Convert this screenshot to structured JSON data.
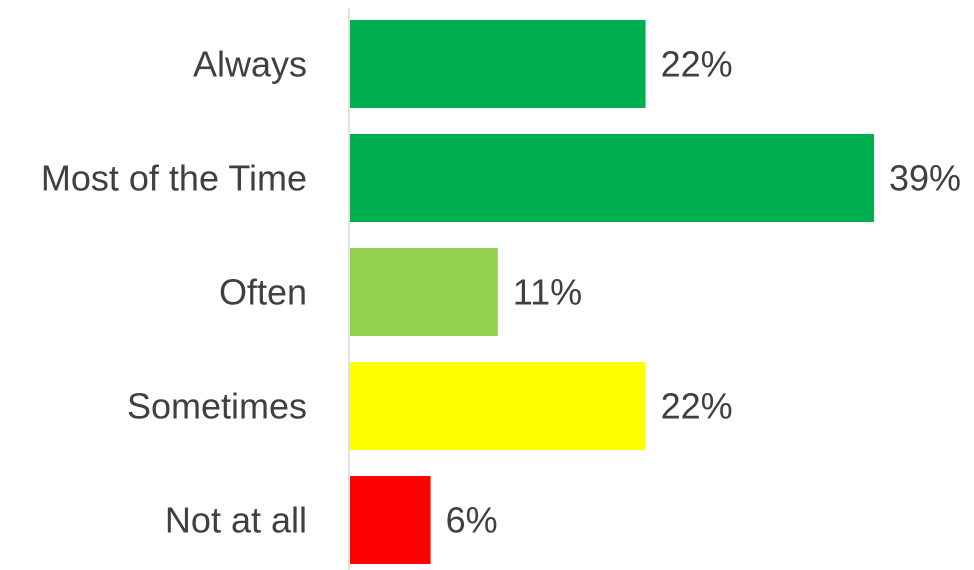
{
  "chart_data": {
    "type": "bar",
    "orientation": "horizontal",
    "categories": [
      "Always",
      "Most of the Time",
      "Often",
      "Sometimes",
      "Not at all"
    ],
    "values": [
      22,
      39,
      11,
      22,
      6
    ],
    "value_labels": [
      "22%",
      "39%",
      "11%",
      "22%",
      "6%"
    ],
    "colors": [
      "#00B050",
      "#00B050",
      "#92D050",
      "#FFFF00",
      "#FF0000"
    ],
    "axis_color": "#D9D9D9",
    "text_color": "#404040",
    "xlim": [
      0,
      39
    ],
    "title": "",
    "xlabel": "",
    "ylabel": "",
    "grid": false,
    "legend": false
  }
}
